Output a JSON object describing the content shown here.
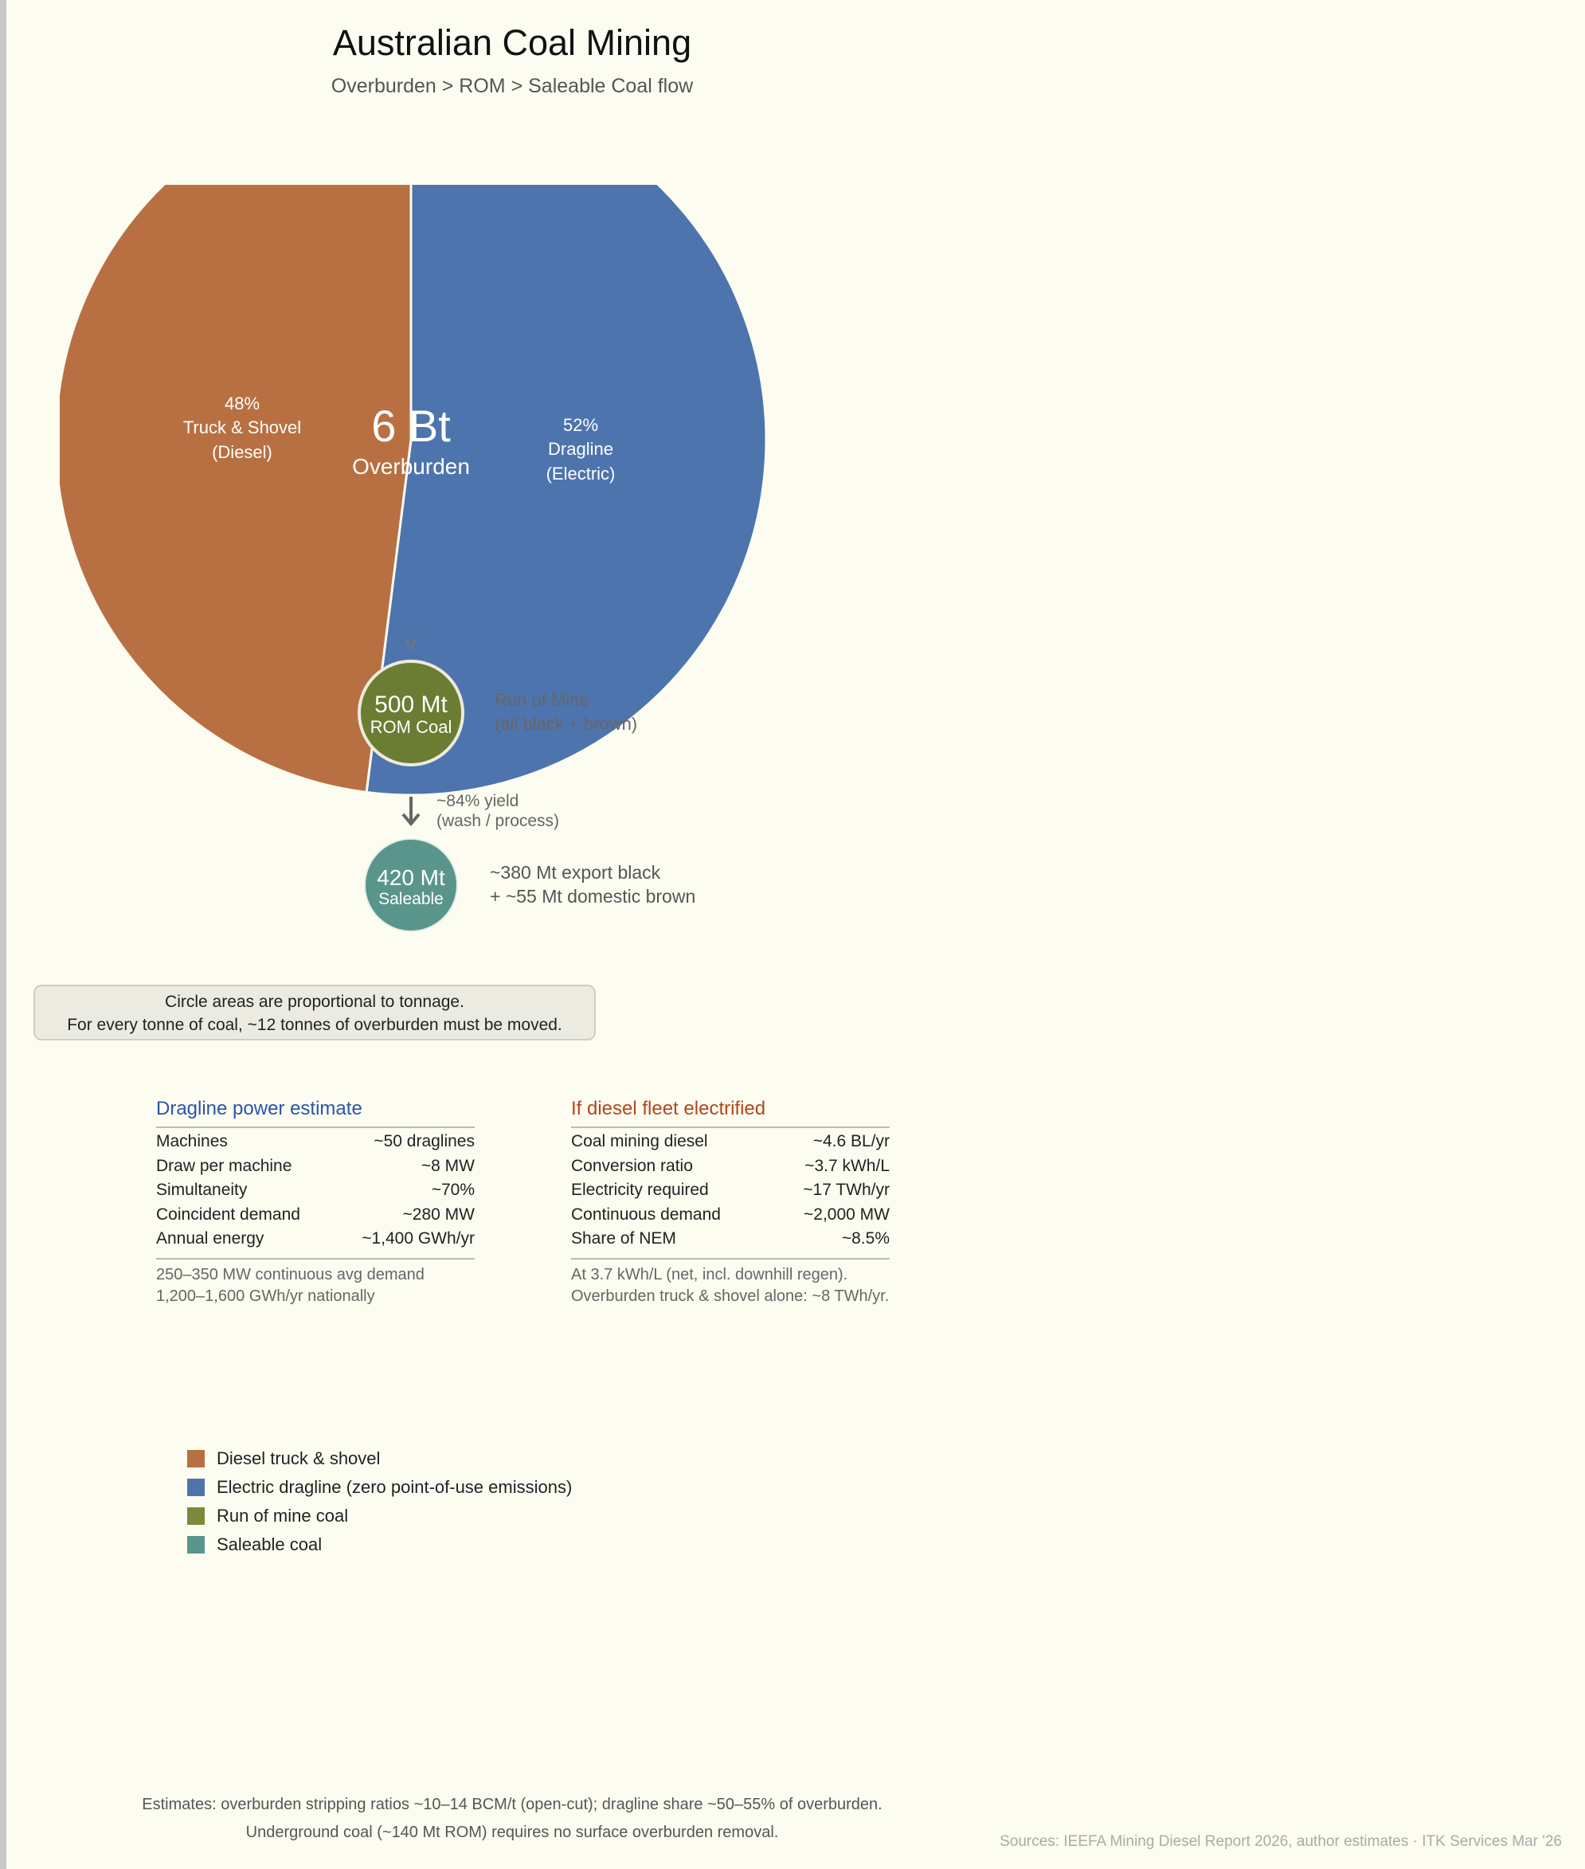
{
  "header": {
    "title": "Australian Coal Mining",
    "subtitle": "Overburden > ROM > Saleable Coal flow"
  },
  "chart_data": {
    "type": "pie",
    "title": "Australian Coal Mining",
    "total": {
      "value": "6 Bt",
      "label": "Overburden"
    },
    "slices": [
      {
        "name": "Dragline (Electric)",
        "pct_label": "52%",
        "line1": "Dragline",
        "line2": "(Electric)",
        "value": 52,
        "color": "#4d74ad"
      },
      {
        "name": "Truck & Shovel (Diesel)",
        "pct_label": "48%",
        "line1": "Truck & Shovel",
        "line2": "(Diesel)",
        "value": 48,
        "color": "#b87042"
      }
    ],
    "flow": [
      {
        "value": "500 Mt",
        "label": "ROM Coal",
        "tonnes_mt": 500,
        "color": "#6a7d32",
        "note1": "Run of Mine",
        "note2": "(all black + brown)"
      },
      {
        "value": "420 Mt",
        "label": "Saleable",
        "tonnes_mt": 420,
        "color": "#5a958c",
        "note1": "~380 Mt export black",
        "note2": "+ ~55 Mt domestic brown"
      }
    ],
    "arrow_top": "v",
    "yield_note": {
      "line1": "~84% yield",
      "line2": "(wash / process)"
    }
  },
  "note": {
    "line1": "Circle areas are proportional to tonnage.",
    "line2": "For every tonne of coal, ~12 tonnes of overburden must be moved."
  },
  "dragline": {
    "title": "Dragline power estimate",
    "color": "#2a55a8",
    "rows": [
      [
        "Machines",
        "~50 draglines"
      ],
      [
        "Draw per machine",
        "~8 MW"
      ],
      [
        "Simultaneity",
        "~70%"
      ],
      [
        "Coincident demand",
        "~280 MW"
      ],
      [
        "Annual energy",
        "~1,400 GWh/yr"
      ]
    ],
    "foot1": "250–350 MW continuous avg demand",
    "foot2": "1,200–1,600 GWh/yr nationally"
  },
  "diesel": {
    "title": "If diesel fleet electrified",
    "color": "#b5461c",
    "rows": [
      [
        "Coal mining diesel",
        "~4.6 BL/yr"
      ],
      [
        "Conversion ratio",
        "~3.7 kWh/L"
      ],
      [
        "Electricity required",
        "~17 TWh/yr"
      ],
      [
        "Continuous demand",
        "~2,000 MW"
      ],
      [
        "Share of NEM",
        "~8.5%"
      ]
    ],
    "foot1": "At 3.7 kWh/L (net, incl. downhill regen).",
    "foot2": "Overburden truck & shovel alone: ~8 TWh/yr."
  },
  "legend": [
    {
      "label": "Diesel truck & shovel",
      "color": "#b87042"
    },
    {
      "label": "Electric dragline (zero point-of-use emissions)",
      "color": "#4d74ad"
    },
    {
      "label": "Run of mine coal",
      "color": "#7a8a3a"
    },
    {
      "label": "Saleable coal",
      "color": "#5a958c"
    }
  ],
  "footer": {
    "line1": "Estimates: overburden stripping ratios ~10–14 BCM/t (open-cut); dragline share ~50–55% of overburden.",
    "line2": "Underground coal (~140 Mt ROM) requires no surface overburden removal.",
    "sources": "Sources: IEEFA Mining Diesel Report 2026, author estimates  ·  ITK Services Mar '26"
  }
}
